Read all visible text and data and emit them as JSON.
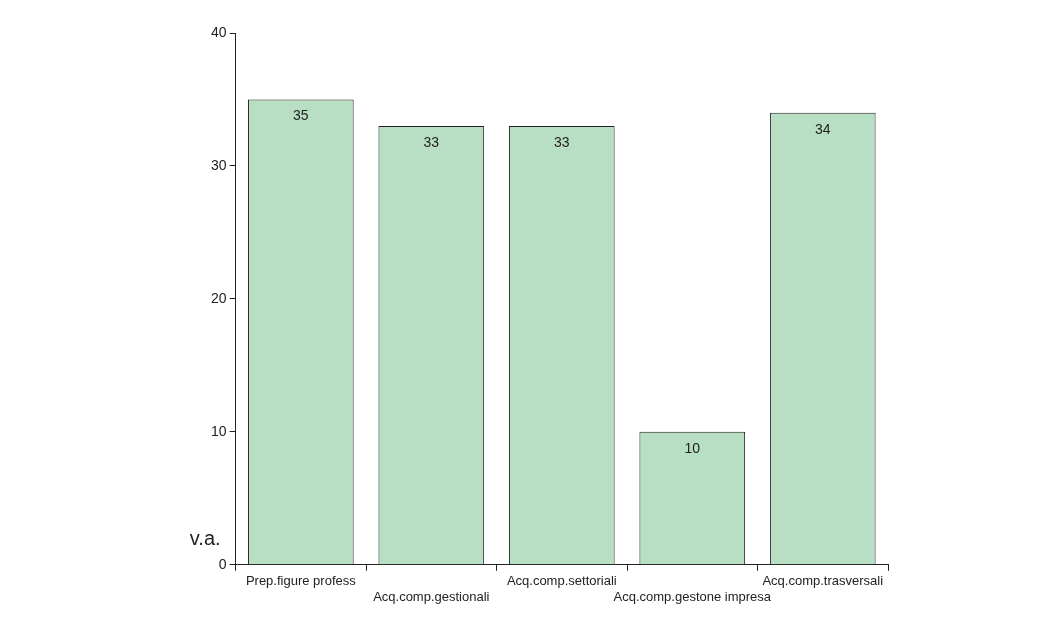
{
  "chart_data": {
    "type": "bar",
    "ylabel": "v.a.",
    "categories": [
      "Prep.figure profess",
      "Acq.comp.gestionali",
      "Acq.comp.settoriali",
      "Acq.comp.gestone impresa",
      "Acq.comp.trasversali"
    ],
    "values": [
      35,
      33,
      33,
      10,
      34
    ],
    "color": "#b8dfc3",
    "ylim": [
      0,
      40
    ],
    "yticks": [
      0,
      10,
      20,
      30,
      40
    ],
    "grid": false,
    "data_labels": true
  }
}
